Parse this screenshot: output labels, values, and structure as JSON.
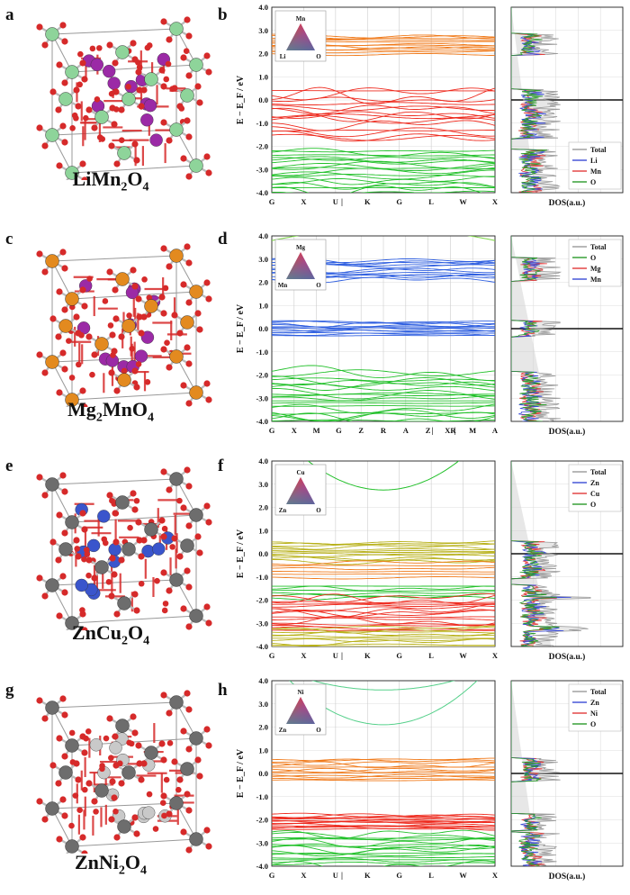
{
  "colors": {
    "li": "#8ed49a",
    "mn": "#9b2aa6",
    "o": "#d62a2a",
    "mg": "#e38a1f",
    "zn": "#6d6d6d",
    "cu": "#3a55cc",
    "ni": "#c9c9c9",
    "orange_band": "#f07a1a",
    "red_band": "#ee2b1f",
    "green_band": "#22c02a",
    "blue_band": "#2f5fe0",
    "olive_band": "#b8b11a",
    "dos_total": "#9a9a9a",
    "dos_blue": "#3a4bd6",
    "dos_red": "#e23a3a",
    "dos_green": "#2a9a2a"
  },
  "shared": {
    "ylabel": "E − E_F / eV",
    "dos_xlabel": "DOS(a.u.)",
    "yticks": [
      "4.0",
      "3.0",
      "2.0",
      "1.0",
      "0.0",
      "-1.0",
      "-2.0",
      "-3.0",
      "-4.0"
    ]
  },
  "panels": [
    {
      "crystal_letter": "a",
      "bands_letter": "b",
      "formula": {
        "base": "LiMn",
        "sub1": "2",
        "mid": "O",
        "sub2": "4"
      },
      "kpath": [
        "G",
        "X",
        "U",
        "|",
        "K",
        "G",
        "L",
        "W",
        "X"
      ],
      "triangle_labels": {
        "top": "Mn",
        "left": "Li",
        "right": "O"
      },
      "legend": [
        "Total",
        "Li",
        "Mn",
        "O"
      ],
      "legend_colors": [
        "#9a9a9a",
        "#3a4bd6",
        "#e23a3a",
        "#2a9a2a"
      ],
      "legend_pos": "bottom",
      "atoms": {
        "cation_a": "#8ed49a",
        "cation_b": "#9b2aa6"
      }
    },
    {
      "crystal_letter": "c",
      "bands_letter": "d",
      "formula": {
        "base": "Mg",
        "sub1": "2",
        "mid": "MnO",
        "sub2": "4"
      },
      "kpath": [
        "G",
        "X",
        "M",
        "G",
        "Z",
        "R",
        "A",
        "Z",
        "|",
        "XR",
        "|",
        "M",
        "A"
      ],
      "triangle_labels": {
        "top": "Mg",
        "left": "Mn",
        "right": "O"
      },
      "legend": [
        "Total",
        "O",
        "Mg",
        "Mn"
      ],
      "legend_colors": [
        "#9a9a9a",
        "#2a9a2a",
        "#e23a3a",
        "#3a4bd6"
      ],
      "legend_pos": "top",
      "atoms": {
        "cation_a": "#e38a1f",
        "cation_b": "#9b2aa6"
      }
    },
    {
      "crystal_letter": "e",
      "bands_letter": "f",
      "formula": {
        "base": "ZnCu",
        "sub1": "2",
        "mid": "O",
        "sub2": "4"
      },
      "kpath": [
        "G",
        "X",
        "U",
        "|",
        "K",
        "G",
        "L",
        "W",
        "X"
      ],
      "triangle_labels": {
        "top": "Cu",
        "left": "Zn",
        "right": "O"
      },
      "legend": [
        "Total",
        "Zn",
        "Cu",
        "O"
      ],
      "legend_colors": [
        "#9a9a9a",
        "#3a4bd6",
        "#e23a3a",
        "#2a9a2a"
      ],
      "legend_pos": "top",
      "atoms": {
        "cation_a": "#6d6d6d",
        "cation_b": "#3a55cc"
      }
    },
    {
      "crystal_letter": "g",
      "bands_letter": "h",
      "formula": {
        "base": "ZnNi",
        "sub1": "2",
        "mid": "O",
        "sub2": "4"
      },
      "kpath": [
        "G",
        "X",
        "U",
        "|",
        "K",
        "G",
        "L",
        "W",
        "X"
      ],
      "triangle_labels": {
        "top": "Ni",
        "left": "Zn",
        "right": "O"
      },
      "legend": [
        "Total",
        "Zn",
        "Ni",
        "O"
      ],
      "legend_colors": [
        "#9a9a9a",
        "#3a4bd6",
        "#e23a3a",
        "#2a9a2a"
      ],
      "legend_pos": "top",
      "atoms": {
        "cation_a": "#6d6d6d",
        "cation_b": "#c9c9c9"
      }
    }
  ]
}
